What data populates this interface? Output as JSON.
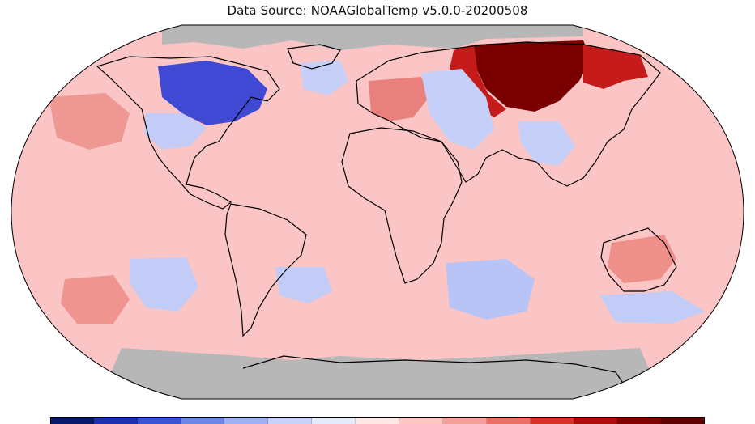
{
  "map": {
    "title": "Data Source: NOAAGlobalTemp v5.0.0-20200508",
    "projection": "robinson",
    "colors": {
      "no_data": "#b7b7b7",
      "base_anomaly": "#fbc5c5",
      "outline": "#000000"
    },
    "anomaly_regions": [
      {
        "region": "Central & Northern Siberia",
        "level": "strong warm",
        "color": "#7a0000"
      },
      {
        "region": "Western Siberia / Eastern Russia",
        "level": "warm",
        "color": "#c51b1b"
      },
      {
        "region": "Europe",
        "level": "moderate warm",
        "color": "#e8807c"
      },
      {
        "region": "North Pacific",
        "level": "moderate warm",
        "color": "#ef9893"
      },
      {
        "region": "Southern Australia",
        "level": "moderate warm",
        "color": "#ef8f8a"
      },
      {
        "region": "South Pacific",
        "level": "moderate warm",
        "color": "#ef948f"
      },
      {
        "region": "Eastern Canada / Hudson Bay",
        "level": "cold",
        "color": "#3f49d4"
      },
      {
        "region": "Southern Indian Ocean",
        "level": "cool",
        "color": "#b8c4f5"
      },
      {
        "region": "Southern Ocean / South Pacific",
        "level": "cool",
        "color": "#c2ccf6"
      },
      {
        "region": "Central Asia",
        "level": "cool",
        "color": "#c6cff7"
      },
      {
        "region": "Antarctica",
        "level": "no data",
        "color": "#b7b7b7"
      },
      {
        "region": "Arctic Ocean",
        "level": "no data",
        "color": "#b7b7b7"
      }
    ]
  },
  "colorbar": {
    "colors": [
      "#08196a",
      "#1d2fb0",
      "#3a52d3",
      "#6e86e3",
      "#9eb0f0",
      "#c8d2f8",
      "#e6ebfc",
      "#fde8e6",
      "#fbc8c4",
      "#f5a19b",
      "#ec6e66",
      "#d8312c",
      "#b00b0f",
      "#830000",
      "#5c0000"
    ]
  }
}
